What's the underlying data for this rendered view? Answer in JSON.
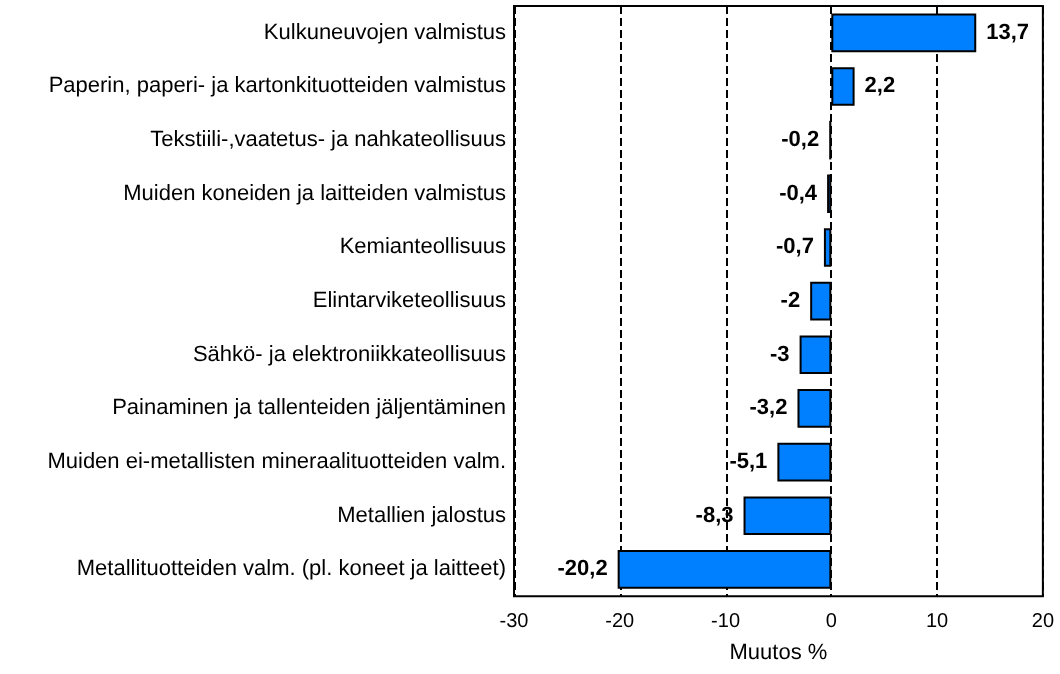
{
  "chart_data": {
    "type": "bar",
    "orientation": "horizontal",
    "xlabel": "Muutos %",
    "categories": [
      "Kulkuneuvojen valmistus",
      "Paperin, paperi- ja kartonkituotteiden valmistus",
      "Tekstiili-,vaatetus- ja nahkateollisuus",
      "Muiden koneiden ja laitteiden valmistus",
      "Kemianteollisuus",
      "Elintarviketeollisuus",
      "Sähkö- ja elektroniikkateollisuus",
      "Painaminen ja tallenteiden jäljentäminen",
      "Muiden ei-metallisten mineraalituotteiden valm.",
      "Metallien jalostus",
      "Metallituotteiden valm. (pl. koneet ja laitteet)"
    ],
    "values": [
      13.7,
      2.2,
      -0.2,
      -0.4,
      -0.7,
      -2,
      -3,
      -3.2,
      -5.1,
      -8.3,
      -20.2
    ],
    "value_labels": [
      "13,7",
      "2,2",
      "-0,2",
      "-0,4",
      "-0,7",
      "-2",
      "-3",
      "-3,2",
      "-5,1",
      "-8,3",
      "-20,2"
    ],
    "color": "#0080ff",
    "xlim": [
      -30,
      20
    ],
    "xticks": [
      -30,
      -20,
      -10,
      0,
      10,
      20
    ],
    "grid": "x"
  }
}
